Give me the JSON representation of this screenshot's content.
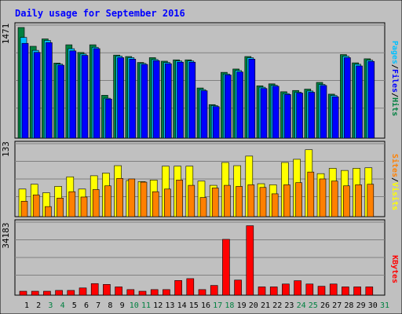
{
  "chart_data": {
    "type": "bar",
    "title": "Daily usage for September 2016",
    "days": [
      "1",
      "2",
      "3",
      "4",
      "5",
      "6",
      "7",
      "8",
      "9",
      "10",
      "11",
      "12",
      "13",
      "14",
      "15",
      "16",
      "17",
      "18",
      "19",
      "20",
      "21",
      "22",
      "23",
      "24",
      "25",
      "26",
      "27",
      "28",
      "29",
      "30",
      "31"
    ],
    "weekend_days": [
      "3",
      "4",
      "10",
      "11",
      "17",
      "18",
      "24",
      "25",
      "31"
    ],
    "panels": [
      {
        "id": "top",
        "ymax_label": "1471",
        "ymax": 1471,
        "legend": [
          "Pages",
          "Files",
          "Hits"
        ],
        "legend_colors": [
          "#00c0ff",
          "#0000ff",
          "#008040"
        ],
        "series": [
          {
            "name": "Hits",
            "color": "#008040",
            "values": [
              1471,
              1221,
              1319,
              998,
              1241,
              1139,
              1241,
              570,
              1104,
              1085,
              1006,
              1070,
              1023,
              1041,
              1041,
              667,
              446,
              875,
              919,
              1085,
              696,
              722,
              617,
              634,
              652,
              741,
              585,
              1111,
              1001,
              1055,
              null
            ]
          },
          {
            "name": "Pages",
            "color": "#00c0ff",
            "values": [
              1339,
              1167,
              1299,
              985,
              1189,
              1118,
              1208,
              531,
              1090,
              1070,
              993,
              1045,
              1006,
              1026,
              1026,
              645,
              433,
              853,
              899,
              1069,
              677,
              703,
              593,
              611,
              627,
              714,
              567,
              1090,
              982,
              1036,
              null
            ]
          },
          {
            "name": "Files",
            "color": "#0000ff",
            "values": [
              1260,
              1140,
              1270,
              970,
              1160,
              1100,
              1190,
              520,
              1070,
              1050,
              980,
              1030,
              990,
              1010,
              1010,
              630,
              420,
              840,
              880,
              1050,
              660,
              690,
              580,
              600,
              610,
              700,
              550,
              1070,
              960,
              1020,
              null
            ]
          }
        ]
      },
      {
        "id": "mid",
        "ymax_label": "133",
        "ymax": 133,
        "legend": [
          "Sites",
          "Visits"
        ],
        "legend_colors": [
          "#ff8000",
          "#ffff00"
        ],
        "series": [
          {
            "name": "Visits",
            "color": "#ffff00",
            "values": [
              52,
              61,
              45,
              57,
              75,
              52,
              77,
              82,
              96,
              68,
              66,
              69,
              95,
              95,
              95,
              67,
              59,
              102,
              96,
              114,
              62,
              60,
              102,
              108,
              126,
              81,
              91,
              87,
              91,
              92,
              null
            ]
          },
          {
            "name": "Sites",
            "color": "#ff8000",
            "values": [
              29,
              41,
              19,
              35,
              47,
              37,
              51,
              58,
              72,
              71,
              65,
              47,
              52,
              69,
              59,
              36,
              54,
              59,
              57,
              60,
              55,
              43,
              60,
              64,
              84,
              71,
              67,
              58,
              60,
              61,
              null
            ]
          }
        ]
      },
      {
        "id": "bot",
        "ymax_label": "34183",
        "ymax": 34183,
        "legend": [
          "KBytes"
        ],
        "legend_colors": [
          "#ff0000"
        ],
        "series": [
          {
            "name": "KBytes",
            "color": "#ff0000",
            "values": [
              1900,
              1900,
              1900,
              2300,
              2300,
              3500,
              5600,
              5200,
              4000,
              2700,
              1900,
              2700,
              2700,
              7100,
              8000,
              2700,
              4700,
              27000,
              7300,
              33600,
              4000,
              4000,
              5400,
              7000,
              5400,
              4300,
              5400,
              4000,
              4000,
              4000,
              null
            ]
          }
        ]
      }
    ]
  }
}
